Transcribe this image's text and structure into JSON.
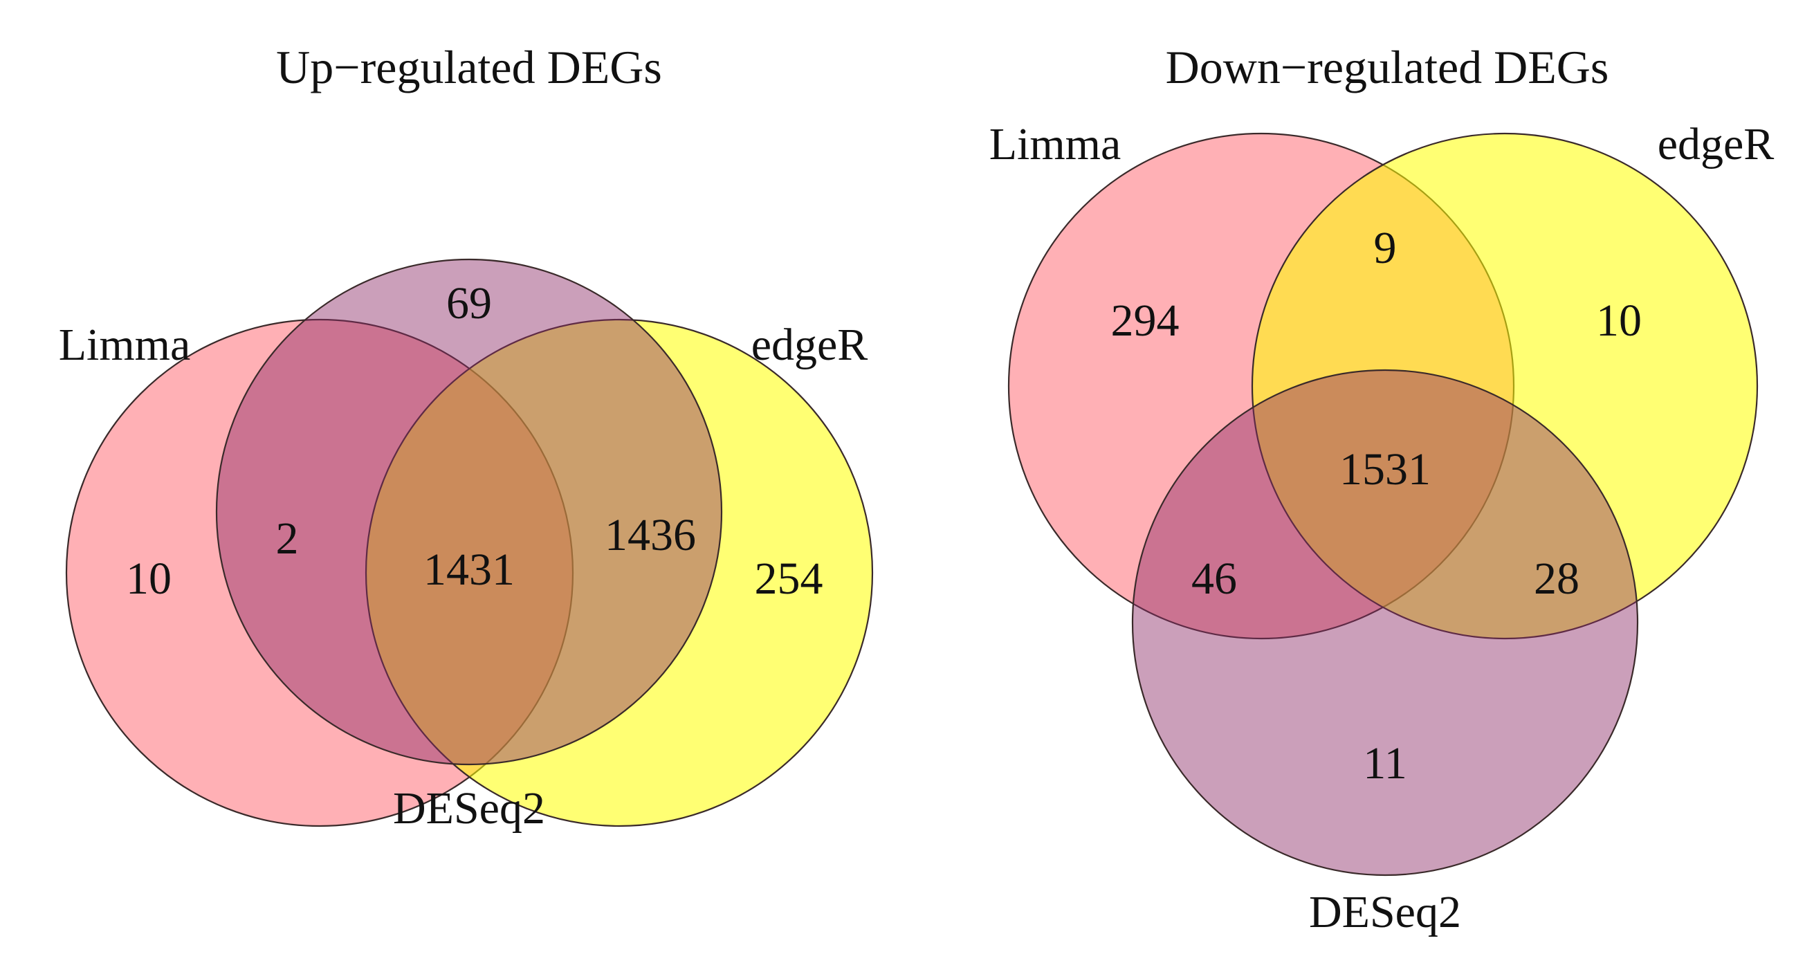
{
  "colors": {
    "limma": "#ff6f78",
    "edger": "#ffff00",
    "deseq2": "#8b2a66",
    "outline": "#3a2a2a"
  },
  "up": {
    "title": "Up−regulated DEGs",
    "labels": {
      "limma": "Limma",
      "edger": "edgeR",
      "deseq2": "DESeq2"
    },
    "counts": {
      "limma_only": "10",
      "limma_deseq2": "2",
      "deseq2_only": "69",
      "all_three": "1431",
      "deseq2_edger": "1436",
      "edger_only": "254"
    }
  },
  "down": {
    "title": "Down−regulated DEGs",
    "labels": {
      "limma": "Limma",
      "edger": "edgeR",
      "deseq2": "DESeq2"
    },
    "counts": {
      "limma_only": "294",
      "limma_edger": "9",
      "edger_only": "10",
      "all_three": "1531",
      "limma_deseq2": "46",
      "deseq2_edger": "28",
      "deseq2_only": "11"
    }
  }
}
